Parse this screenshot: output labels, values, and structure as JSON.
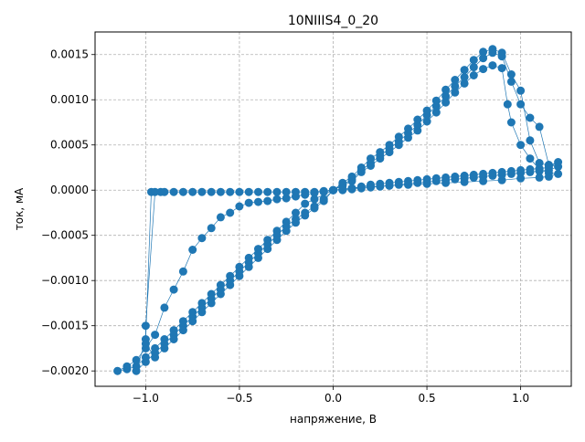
{
  "chart_data": {
    "type": "scatter",
    "title": "10NIIIS4_0_20",
    "xlabel": "напряжение, В",
    "ylabel": "ток, мА",
    "xlim": [
      -1.27,
      1.27
    ],
    "ylim": [
      -0.00217,
      0.00175
    ],
    "xticks": [
      -1.0,
      -0.5,
      0.0,
      0.5,
      1.0
    ],
    "xtick_labels": [
      "−1.0",
      "−0.5",
      "0.0",
      "0.5",
      "1.0"
    ],
    "yticks": [
      -0.002,
      -0.0015,
      -0.001,
      -0.0005,
      0.0,
      0.0005,
      0.001,
      0.0015
    ],
    "ytick_labels": [
      "−0.0020",
      "−0.0015",
      "−0.0010",
      "−0.0005",
      "0.0000",
      "0.0005",
      "0.0010",
      "0.0015"
    ],
    "grid": true,
    "marker_color": "#1f77b4",
    "line_color": "#1f77b4",
    "series": [
      {
        "values": [
          [
            0.0,
            0.0
          ],
          [
            0.05,
            5e-05
          ],
          [
            0.1,
            0.0001
          ],
          [
            0.15,
            0.0002
          ],
          [
            0.2,
            0.00027
          ],
          [
            0.25,
            0.00035
          ],
          [
            0.3,
            0.00042
          ],
          [
            0.35,
            0.0005
          ],
          [
            0.4,
            0.00058
          ],
          [
            0.45,
            0.00066
          ],
          [
            0.5,
            0.00076
          ],
          [
            0.55,
            0.00086
          ],
          [
            0.6,
            0.00097
          ],
          [
            0.65,
            0.00108
          ],
          [
            0.7,
            0.00118
          ],
          [
            0.75,
            0.00127
          ],
          [
            0.8,
            0.00134
          ],
          [
            0.85,
            0.00138
          ],
          [
            0.9,
            0.00135
          ],
          [
            0.93,
            0.00095
          ],
          [
            0.95,
            0.00075
          ],
          [
            1.0,
            0.0005
          ],
          [
            1.05,
            0.00035
          ],
          [
            1.1,
            0.00023
          ],
          [
            1.15,
            0.00019
          ],
          [
            1.2,
            0.00018
          ],
          [
            1.15,
            0.00015
          ],
          [
            1.1,
            0.00014
          ],
          [
            1.0,
            0.00013
          ],
          [
            0.9,
            0.00011
          ],
          [
            0.8,
            0.0001
          ],
          [
            0.7,
            9e-05
          ],
          [
            0.6,
            8e-05
          ],
          [
            0.5,
            7e-05
          ],
          [
            0.4,
            6e-05
          ],
          [
            0.3,
            5e-05
          ],
          [
            0.2,
            4e-05
          ],
          [
            0.1,
            2e-05
          ],
          [
            0.0,
            0.0
          ],
          [
            -0.1,
            -0.0001
          ],
          [
            -0.15,
            -0.00015
          ],
          [
            -0.2,
            -0.00025
          ],
          [
            -0.25,
            -0.00035
          ],
          [
            -0.3,
            -0.00045
          ],
          [
            -0.35,
            -0.00055
          ],
          [
            -0.4,
            -0.00065
          ],
          [
            -0.45,
            -0.00075
          ],
          [
            -0.5,
            -0.00085
          ],
          [
            -0.55,
            -0.00095
          ],
          [
            -0.6,
            -0.00105
          ],
          [
            -0.65,
            -0.00115
          ],
          [
            -0.7,
            -0.00125
          ],
          [
            -0.75,
            -0.00135
          ],
          [
            -0.8,
            -0.00145
          ],
          [
            -0.85,
            -0.00155
          ],
          [
            -0.9,
            -0.00165
          ],
          [
            -0.95,
            -0.00175
          ],
          [
            -1.0,
            -0.00185
          ],
          [
            -1.05,
            -0.00195
          ],
          [
            -1.1,
            -0.00198
          ],
          [
            -1.15,
            -0.002
          ],
          [
            -1.1,
            -0.00195
          ],
          [
            -1.05,
            -0.00188
          ],
          [
            -1.0,
            -0.00175
          ],
          [
            -0.95,
            -0.0016
          ],
          [
            -0.9,
            -0.0013
          ],
          [
            -0.85,
            -0.0011
          ],
          [
            -0.8,
            -0.0009
          ],
          [
            -0.75,
            -0.00066
          ],
          [
            -0.7,
            -0.00053
          ],
          [
            -0.65,
            -0.00042
          ],
          [
            -0.6,
            -0.0003
          ],
          [
            -0.55,
            -0.00025
          ],
          [
            -0.5,
            -0.00018
          ],
          [
            -0.45,
            -0.00014
          ],
          [
            -0.4,
            -0.00013
          ],
          [
            -0.35,
            -0.00012
          ],
          [
            -0.3,
            -0.0001
          ],
          [
            -0.25,
            -9e-05
          ],
          [
            -0.2,
            -7e-05
          ],
          [
            -0.15,
            -5e-05
          ],
          [
            -0.1,
            -3e-05
          ],
          [
            -0.05,
            -1e-05
          ],
          [
            0.0,
            0.0
          ]
        ]
      },
      {
        "values": [
          [
            0.0,
            0.0
          ],
          [
            0.05,
            6e-05
          ],
          [
            0.1,
            0.00012
          ],
          [
            0.15,
            0.00022
          ],
          [
            0.2,
            0.0003
          ],
          [
            0.25,
            0.00038
          ],
          [
            0.3,
            0.00046
          ],
          [
            0.35,
            0.00054
          ],
          [
            0.4,
            0.00063
          ],
          [
            0.45,
            0.00072
          ],
          [
            0.5,
            0.00083
          ],
          [
            0.55,
            0.00093
          ],
          [
            0.6,
            0.00104
          ],
          [
            0.65,
            0.00115
          ],
          [
            0.7,
            0.00125
          ],
          [
            0.75,
            0.00136
          ],
          [
            0.8,
            0.00146
          ],
          [
            0.85,
            0.00152
          ],
          [
            0.9,
            0.00148
          ],
          [
            0.95,
            0.0012
          ],
          [
            1.0,
            0.00095
          ],
          [
            1.05,
            0.0008
          ],
          [
            1.1,
            0.0007
          ],
          [
            1.15,
            0.00028
          ],
          [
            1.2,
            0.00026
          ],
          [
            1.15,
            0.00022
          ],
          [
            1.1,
            0.00021
          ],
          [
            1.05,
            0.0002
          ],
          [
            1.0,
            0.00019
          ],
          [
            0.95,
            0.00018
          ],
          [
            0.9,
            0.00017
          ],
          [
            0.85,
            0.00016
          ],
          [
            0.8,
            0.00015
          ],
          [
            0.75,
            0.00014
          ],
          [
            0.7,
            0.00013
          ],
          [
            0.65,
            0.00012
          ],
          [
            0.6,
            0.00011
          ],
          [
            0.55,
            0.0001
          ],
          [
            0.5,
            9e-05
          ],
          [
            0.45,
            8e-05
          ],
          [
            0.4,
            7e-05
          ],
          [
            0.35,
            6e-05
          ],
          [
            0.3,
            5e-05
          ],
          [
            0.25,
            4e-05
          ],
          [
            0.2,
            3e-05
          ],
          [
            0.15,
            2e-05
          ],
          [
            0.1,
            1e-05
          ],
          [
            0.05,
            0.0
          ],
          [
            0.0,
            0.0
          ],
          [
            -0.05,
            -0.0001
          ],
          [
            -0.1,
            -0.00018
          ],
          [
            -0.15,
            -0.00025
          ],
          [
            -0.2,
            -0.00032
          ],
          [
            -0.25,
            -0.0004
          ],
          [
            -0.3,
            -0.0005
          ],
          [
            -0.35,
            -0.0006
          ],
          [
            -0.4,
            -0.0007
          ],
          [
            -0.45,
            -0.0008
          ],
          [
            -0.5,
            -0.0009
          ],
          [
            -0.55,
            -0.001
          ],
          [
            -0.6,
            -0.0011
          ],
          [
            -0.65,
            -0.0012
          ],
          [
            -0.7,
            -0.0013
          ],
          [
            -0.75,
            -0.0014
          ],
          [
            -0.8,
            -0.0015
          ],
          [
            -0.85,
            -0.0016
          ],
          [
            -0.9,
            -0.0017
          ],
          [
            -0.95,
            -0.0018
          ],
          [
            -1.0,
            -0.0019
          ],
          [
            -1.05,
            -0.002
          ],
          [
            -1.0,
            -0.00165
          ],
          [
            -0.97,
            -2e-05
          ],
          [
            -0.92,
            -2e-05
          ],
          [
            -0.85,
            -2e-05
          ],
          [
            -0.75,
            -2e-05
          ],
          [
            -0.65,
            -2e-05
          ],
          [
            -0.55,
            -2e-05
          ],
          [
            -0.45,
            -2e-05
          ],
          [
            -0.35,
            -2e-05
          ],
          [
            -0.25,
            -2e-05
          ],
          [
            -0.15,
            -2e-05
          ],
          [
            -0.05,
            -2e-05
          ],
          [
            0.0,
            0.0
          ]
        ]
      },
      {
        "values": [
          [
            0.0,
            0.0
          ],
          [
            0.05,
            8e-05
          ],
          [
            0.1,
            0.00015
          ],
          [
            0.15,
            0.00025
          ],
          [
            0.2,
            0.00035
          ],
          [
            0.25,
            0.00042
          ],
          [
            0.3,
            0.0005
          ],
          [
            0.35,
            0.00059
          ],
          [
            0.4,
            0.00068
          ],
          [
            0.45,
            0.00078
          ],
          [
            0.5,
            0.00088
          ],
          [
            0.55,
            0.00099
          ],
          [
            0.6,
            0.00111
          ],
          [
            0.65,
            0.00122
          ],
          [
            0.7,
            0.00133
          ],
          [
            0.75,
            0.00144
          ],
          [
            0.8,
            0.00153
          ],
          [
            0.85,
            0.00156
          ],
          [
            0.9,
            0.00152
          ],
          [
            0.95,
            0.00128
          ],
          [
            1.0,
            0.0011
          ],
          [
            1.05,
            0.00055
          ],
          [
            1.1,
            0.0003
          ],
          [
            1.15,
            0.00027
          ],
          [
            1.2,
            0.00031
          ],
          [
            1.15,
            0.00025
          ],
          [
            1.1,
            0.00024
          ],
          [
            1.05,
            0.00023
          ],
          [
            1.0,
            0.00022
          ],
          [
            0.95,
            0.00021
          ],
          [
            0.9,
            0.0002
          ],
          [
            0.85,
            0.00019
          ],
          [
            0.8,
            0.00018
          ],
          [
            0.75,
            0.00017
          ],
          [
            0.7,
            0.00016
          ],
          [
            0.65,
            0.00015
          ],
          [
            0.6,
            0.00014
          ],
          [
            0.55,
            0.00013
          ],
          [
            0.5,
            0.00012
          ],
          [
            0.45,
            0.00011
          ],
          [
            0.4,
            0.0001
          ],
          [
            0.35,
            9e-05
          ],
          [
            0.3,
            8e-05
          ],
          [
            0.25,
            7e-05
          ],
          [
            0.2,
            6e-05
          ],
          [
            0.15,
            4e-05
          ],
          [
            0.1,
            2e-05
          ],
          [
            0.05,
            1e-05
          ],
          [
            0.0,
            0.0
          ],
          [
            -0.05,
            -0.00012
          ],
          [
            -0.1,
            -0.0002
          ],
          [
            -0.15,
            -0.00028
          ],
          [
            -0.2,
            -0.00036
          ],
          [
            -0.25,
            -0.00045
          ],
          [
            -0.3,
            -0.00055
          ],
          [
            -0.35,
            -0.00065
          ],
          [
            -0.4,
            -0.00075
          ],
          [
            -0.45,
            -0.00085
          ],
          [
            -0.5,
            -0.00095
          ],
          [
            -0.55,
            -0.00105
          ],
          [
            -0.6,
            -0.00115
          ],
          [
            -0.65,
            -0.00125
          ],
          [
            -0.7,
            -0.00135
          ],
          [
            -0.75,
            -0.00145
          ],
          [
            -0.8,
            -0.00155
          ],
          [
            -0.85,
            -0.00165
          ],
          [
            -0.9,
            -0.00175
          ],
          [
            -0.95,
            -0.00185
          ],
          [
            -1.0,
            -0.0017
          ],
          [
            -1.0,
            -0.0015
          ],
          [
            -0.95,
            -2e-05
          ],
          [
            -0.9,
            -2e-05
          ],
          [
            -0.8,
            -2e-05
          ],
          [
            -0.7,
            -2e-05
          ],
          [
            -0.6,
            -2e-05
          ],
          [
            -0.5,
            -2e-05
          ],
          [
            -0.4,
            -2e-05
          ],
          [
            -0.3,
            -2e-05
          ],
          [
            -0.2,
            -2e-05
          ],
          [
            -0.1,
            -2e-05
          ],
          [
            0.0,
            0.0
          ]
        ]
      }
    ]
  }
}
